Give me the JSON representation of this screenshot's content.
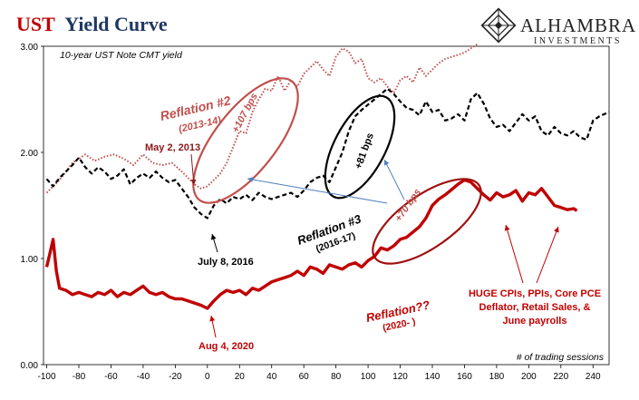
{
  "header": {
    "title_part1": "UST",
    "title_part2": "Yield Curve",
    "subtitle": "10-year UST Note CMT yield",
    "logo_name": "ALHAMBRA",
    "logo_sub": "INVESTMENTS"
  },
  "colors": {
    "reflation2": "#c0504d",
    "reflation3": "#000000",
    "reflation2020": "#c00000",
    "blue_arrow": "#4f81bd"
  },
  "annotations": {
    "reflation2_title": "Reflation #2",
    "reflation2_years": "(2013-14)",
    "reflation2_bps": "+107 bps",
    "may_2013": "May 2, 2013",
    "reflation3_title": "Reflation #3",
    "reflation3_years": "(2016-17)",
    "reflation3_bps": "+81 bps",
    "july_2016": "July 8, 2016",
    "reflation2020_bps": "+70 bps",
    "reflation2020_title": "Reflation??",
    "reflation2020_years": "(2020- )",
    "aug_2020": "Aug 4, 2020",
    "huge_line1": "HUGE CPIs, PPIs, Core PCE",
    "huge_line2": "Deflator, Retail Sales, &",
    "huge_line3": "June payrolls"
  },
  "chart_data": {
    "type": "line",
    "title": "UST Yield Curve",
    "subtitle": "10-year UST Note CMT yield",
    "xlabel": "# of trading sessions",
    "ylabel": "",
    "xlim": [
      -102,
      250
    ],
    "ylim": [
      0,
      3
    ],
    "x_ticks": [
      -100,
      -80,
      -60,
      -40,
      -20,
      0,
      20,
      40,
      60,
      80,
      100,
      120,
      140,
      160,
      180,
      200,
      220,
      240
    ],
    "y_ticks": [
      0,
      1,
      2,
      3
    ],
    "y_tick_labels": [
      "0.00",
      "1.00",
      "2.00",
      "3.00"
    ],
    "grid": false,
    "legend": "none",
    "series": [
      {
        "name": "Reflation #2 (2013-14)",
        "style": "dotted",
        "color": "#c0504d",
        "points": [
          [
            -100,
            1.62
          ],
          [
            -92,
            1.74
          ],
          [
            -84,
            1.9
          ],
          [
            -76,
            1.98
          ],
          [
            -70,
            1.92
          ],
          [
            -64,
            1.96
          ],
          [
            -58,
            1.98
          ],
          [
            -52,
            1.94
          ],
          [
            -46,
            1.88
          ],
          [
            -40,
            1.98
          ],
          [
            -34,
            1.9
          ],
          [
            -28,
            1.88
          ],
          [
            -22,
            1.9
          ],
          [
            -16,
            1.82
          ],
          [
            -12,
            1.76
          ],
          [
            -8,
            1.7
          ],
          [
            -4,
            1.66
          ],
          [
            0,
            1.68
          ],
          [
            4,
            1.74
          ],
          [
            8,
            1.8
          ],
          [
            12,
            1.9
          ],
          [
            16,
            2.05
          ],
          [
            20,
            2.2
          ],
          [
            24,
            2.18
          ],
          [
            28,
            2.38
          ],
          [
            32,
            2.5
          ],
          [
            36,
            2.6
          ],
          [
            40,
            2.58
          ],
          [
            44,
            2.72
          ],
          [
            48,
            2.58
          ],
          [
            52,
            2.68
          ],
          [
            56,
            2.62
          ],
          [
            60,
            2.74
          ],
          [
            64,
            2.8
          ],
          [
            68,
            2.86
          ],
          [
            72,
            2.78
          ],
          [
            76,
            2.72
          ],
          [
            80,
            2.9
          ],
          [
            84,
            2.98
          ],
          [
            88,
            2.95
          ],
          [
            92,
            2.84
          ],
          [
            96,
            2.88
          ],
          [
            100,
            2.7
          ],
          [
            104,
            2.66
          ],
          [
            108,
            2.7
          ],
          [
            112,
            2.62
          ],
          [
            116,
            2.56
          ],
          [
            120,
            2.68
          ],
          [
            124,
            2.72
          ],
          [
            128,
            2.66
          ],
          [
            132,
            2.8
          ],
          [
            136,
            2.72
          ],
          [
            140,
            2.78
          ],
          [
            144,
            2.84
          ],
          [
            148,
            2.88
          ],
          [
            152,
            2.9
          ],
          [
            156,
            2.92
          ],
          [
            160,
            2.94
          ],
          [
            164,
            2.98
          ],
          [
            168,
            3.02
          ]
        ]
      },
      {
        "name": "Reflation #3 (2016-17)",
        "style": "dashed",
        "color": "#000000",
        "points": [
          [
            -100,
            1.75
          ],
          [
            -96,
            1.68
          ],
          [
            -92,
            1.76
          ],
          [
            -88,
            1.82
          ],
          [
            -84,
            1.88
          ],
          [
            -80,
            1.95
          ],
          [
            -76,
            1.86
          ],
          [
            -72,
            1.8
          ],
          [
            -68,
            1.86
          ],
          [
            -64,
            1.82
          ],
          [
            -60,
            1.75
          ],
          [
            -56,
            1.78
          ],
          [
            -52,
            1.84
          ],
          [
            -48,
            1.7
          ],
          [
            -44,
            1.76
          ],
          [
            -40,
            1.8
          ],
          [
            -36,
            1.76
          ],
          [
            -32,
            1.82
          ],
          [
            -28,
            1.76
          ],
          [
            -24,
            1.72
          ],
          [
            -20,
            1.74
          ],
          [
            -16,
            1.66
          ],
          [
            -12,
            1.58
          ],
          [
            -8,
            1.48
          ],
          [
            -4,
            1.42
          ],
          [
            0,
            1.38
          ],
          [
            4,
            1.5
          ],
          [
            8,
            1.56
          ],
          [
            12,
            1.52
          ],
          [
            16,
            1.58
          ],
          [
            20,
            1.56
          ],
          [
            24,
            1.6
          ],
          [
            28,
            1.55
          ],
          [
            32,
            1.62
          ],
          [
            36,
            1.58
          ],
          [
            40,
            1.56
          ],
          [
            44,
            1.58
          ],
          [
            48,
            1.6
          ],
          [
            52,
            1.62
          ],
          [
            56,
            1.58
          ],
          [
            60,
            1.64
          ],
          [
            64,
            1.72
          ],
          [
            68,
            1.76
          ],
          [
            72,
            1.78
          ],
          [
            76,
            1.72
          ],
          [
            80,
            1.86
          ],
          [
            84,
            2.0
          ],
          [
            88,
            2.2
          ],
          [
            92,
            2.34
          ],
          [
            96,
            2.4
          ],
          [
            100,
            2.45
          ],
          [
            104,
            2.5
          ],
          [
            108,
            2.55
          ],
          [
            112,
            2.6
          ],
          [
            116,
            2.55
          ],
          [
            120,
            2.48
          ],
          [
            124,
            2.42
          ],
          [
            128,
            2.4
          ],
          [
            132,
            2.35
          ],
          [
            136,
            2.48
          ],
          [
            140,
            2.38
          ],
          [
            144,
            2.4
          ],
          [
            148,
            2.3
          ],
          [
            152,
            2.32
          ],
          [
            156,
            2.36
          ],
          [
            160,
            2.3
          ],
          [
            164,
            2.5
          ],
          [
            168,
            2.56
          ],
          [
            172,
            2.46
          ],
          [
            176,
            2.32
          ],
          [
            180,
            2.24
          ],
          [
            184,
            2.26
          ],
          [
            188,
            2.2
          ],
          [
            192,
            2.28
          ],
          [
            196,
            2.36
          ],
          [
            200,
            2.3
          ],
          [
            204,
            2.34
          ],
          [
            208,
            2.2
          ],
          [
            212,
            2.16
          ],
          [
            216,
            2.24
          ],
          [
            220,
            2.18
          ],
          [
            224,
            2.16
          ],
          [
            228,
            2.2
          ],
          [
            232,
            2.14
          ],
          [
            236,
            2.12
          ],
          [
            240,
            2.3
          ],
          [
            244,
            2.34
          ],
          [
            250,
            2.38
          ]
        ]
      },
      {
        "name": "Reflation?? (2020- )",
        "style": "solid",
        "color": "#c00000",
        "points": [
          [
            -100,
            0.92
          ],
          [
            -98,
            1.05
          ],
          [
            -96,
            1.18
          ],
          [
            -94,
            0.88
          ],
          [
            -92,
            0.72
          ],
          [
            -88,
            0.7
          ],
          [
            -84,
            0.66
          ],
          [
            -80,
            0.68
          ],
          [
            -76,
            0.66
          ],
          [
            -72,
            0.64
          ],
          [
            -68,
            0.68
          ],
          [
            -64,
            0.66
          ],
          [
            -60,
            0.7
          ],
          [
            -56,
            0.64
          ],
          [
            -52,
            0.68
          ],
          [
            -48,
            0.66
          ],
          [
            -44,
            0.7
          ],
          [
            -40,
            0.74
          ],
          [
            -36,
            0.68
          ],
          [
            -32,
            0.66
          ],
          [
            -28,
            0.68
          ],
          [
            -24,
            0.64
          ],
          [
            -20,
            0.62
          ],
          [
            -16,
            0.62
          ],
          [
            -12,
            0.6
          ],
          [
            -8,
            0.58
          ],
          [
            -4,
            0.56
          ],
          [
            0,
            0.53
          ],
          [
            4,
            0.6
          ],
          [
            8,
            0.66
          ],
          [
            12,
            0.7
          ],
          [
            16,
            0.68
          ],
          [
            20,
            0.7
          ],
          [
            24,
            0.66
          ],
          [
            28,
            0.72
          ],
          [
            32,
            0.7
          ],
          [
            36,
            0.74
          ],
          [
            40,
            0.78
          ],
          [
            44,
            0.8
          ],
          [
            48,
            0.82
          ],
          [
            52,
            0.84
          ],
          [
            56,
            0.88
          ],
          [
            60,
            0.84
          ],
          [
            64,
            0.92
          ],
          [
            68,
            0.9
          ],
          [
            72,
            0.86
          ],
          [
            76,
            0.94
          ],
          [
            80,
            0.92
          ],
          [
            84,
            0.9
          ],
          [
            88,
            0.94
          ],
          [
            92,
            0.96
          ],
          [
            96,
            0.92
          ],
          [
            100,
            0.98
          ],
          [
            104,
            1.02
          ],
          [
            108,
            1.1
          ],
          [
            112,
            1.08
          ],
          [
            116,
            1.12
          ],
          [
            120,
            1.18
          ],
          [
            124,
            1.2
          ],
          [
            128,
            1.25
          ],
          [
            132,
            1.3
          ],
          [
            136,
            1.38
          ],
          [
            140,
            1.5
          ],
          [
            144,
            1.56
          ],
          [
            148,
            1.6
          ],
          [
            152,
            1.65
          ],
          [
            156,
            1.7
          ],
          [
            160,
            1.74
          ],
          [
            164,
            1.72
          ],
          [
            168,
            1.66
          ],
          [
            172,
            1.6
          ],
          [
            176,
            1.55
          ],
          [
            180,
            1.62
          ],
          [
            184,
            1.58
          ],
          [
            188,
            1.6
          ],
          [
            192,
            1.64
          ],
          [
            196,
            1.54
          ],
          [
            200,
            1.62
          ],
          [
            204,
            1.6
          ],
          [
            208,
            1.66
          ],
          [
            212,
            1.58
          ],
          [
            216,
            1.5
          ],
          [
            220,
            1.48
          ],
          [
            224,
            1.46
          ],
          [
            228,
            1.47
          ],
          [
            230,
            1.45
          ]
        ]
      }
    ]
  }
}
